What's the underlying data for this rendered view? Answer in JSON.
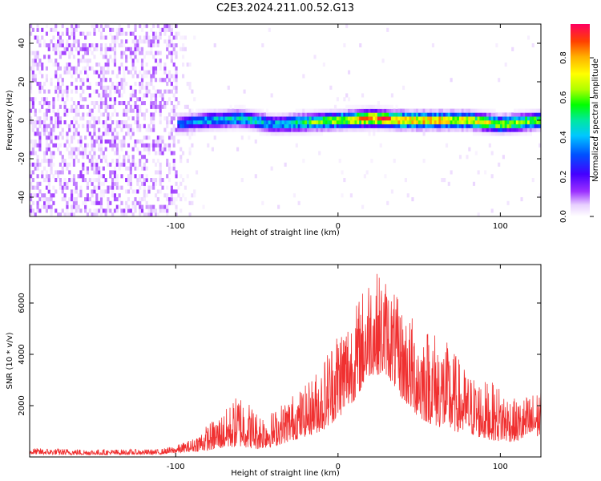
{
  "title": "C2E3.2024.211.00.52.G13",
  "chart_data": [
    {
      "type": "heatmap",
      "xlabel": "Height of straight line (km)",
      "ylabel": "Frequency (Hz)",
      "xlim": [
        -190,
        125
      ],
      "ylim": [
        -50,
        50
      ],
      "x_ticks": [
        -100,
        0,
        100
      ],
      "y_ticks": [
        -40,
        -20,
        0,
        20,
        40
      ],
      "grid": false,
      "colorbar": {
        "label": "Normalized spectral amplitude",
        "range": [
          0,
          0.97
        ],
        "ticks": [
          0.0,
          0.2,
          0.4,
          0.6,
          0.8
        ],
        "colormap": [
          "#ffffff",
          "#e8d0ff",
          "#9b30ff",
          "#5000ff",
          "#0040ff",
          "#00c8ff",
          "#00e0a0",
          "#00ff00",
          "#b0ff00",
          "#ffff00",
          "#ffb000",
          "#ff4000",
          "#ff0060"
        ]
      },
      "noise_region_x": [
        -190,
        -100
      ],
      "signal_band": {
        "x": [
          -100,
          -80,
          -60,
          -40,
          -20,
          0,
          20,
          40,
          60,
          80,
          100,
          125
        ],
        "center_hz": [
          -2,
          0,
          1,
          -2,
          -1,
          0,
          1,
          0,
          0,
          0,
          -2,
          0
        ],
        "peak_amplitude": [
          0.35,
          0.45,
          0.5,
          0.45,
          0.6,
          0.75,
          0.95,
          0.9,
          0.85,
          0.8,
          0.7,
          0.65
        ]
      }
    },
    {
      "type": "line",
      "xlabel": "Height of straight line (km)",
      "ylabel": "SNR (10 * v/v)",
      "xlim": [
        -190,
        125
      ],
      "ylim": [
        0,
        7500
      ],
      "x_ticks": [
        -100,
        0,
        100
      ],
      "y_ticks": [
        2000,
        4000,
        6000
      ],
      "grid": false,
      "series": [
        {
          "color": "#f03030",
          "envelope_x": [
            -190,
            -150,
            -110,
            -100,
            -90,
            -80,
            -70,
            -60,
            -50,
            -40,
            -30,
            -20,
            -10,
            0,
            10,
            20,
            30,
            40,
            50,
            60,
            70,
            80,
            90,
            100,
            110,
            125
          ],
          "envelope_baseline": [
            100,
            80,
            100,
            150,
            200,
            250,
            350,
            400,
            300,
            400,
            600,
            800,
            1000,
            1500,
            2200,
            3200,
            3200,
            2200,
            1500,
            1200,
            1000,
            900,
            700,
            600,
            600,
            800
          ],
          "envelope_peak": [
            350,
            300,
            300,
            450,
            700,
            1300,
            1800,
            2600,
            1800,
            1800,
            2400,
            2800,
            3700,
            5300,
            5800,
            7400,
            7000,
            5800,
            5300,
            5000,
            4300,
            3300,
            3000,
            2800,
            2200,
            2700
          ]
        }
      ]
    }
  ]
}
